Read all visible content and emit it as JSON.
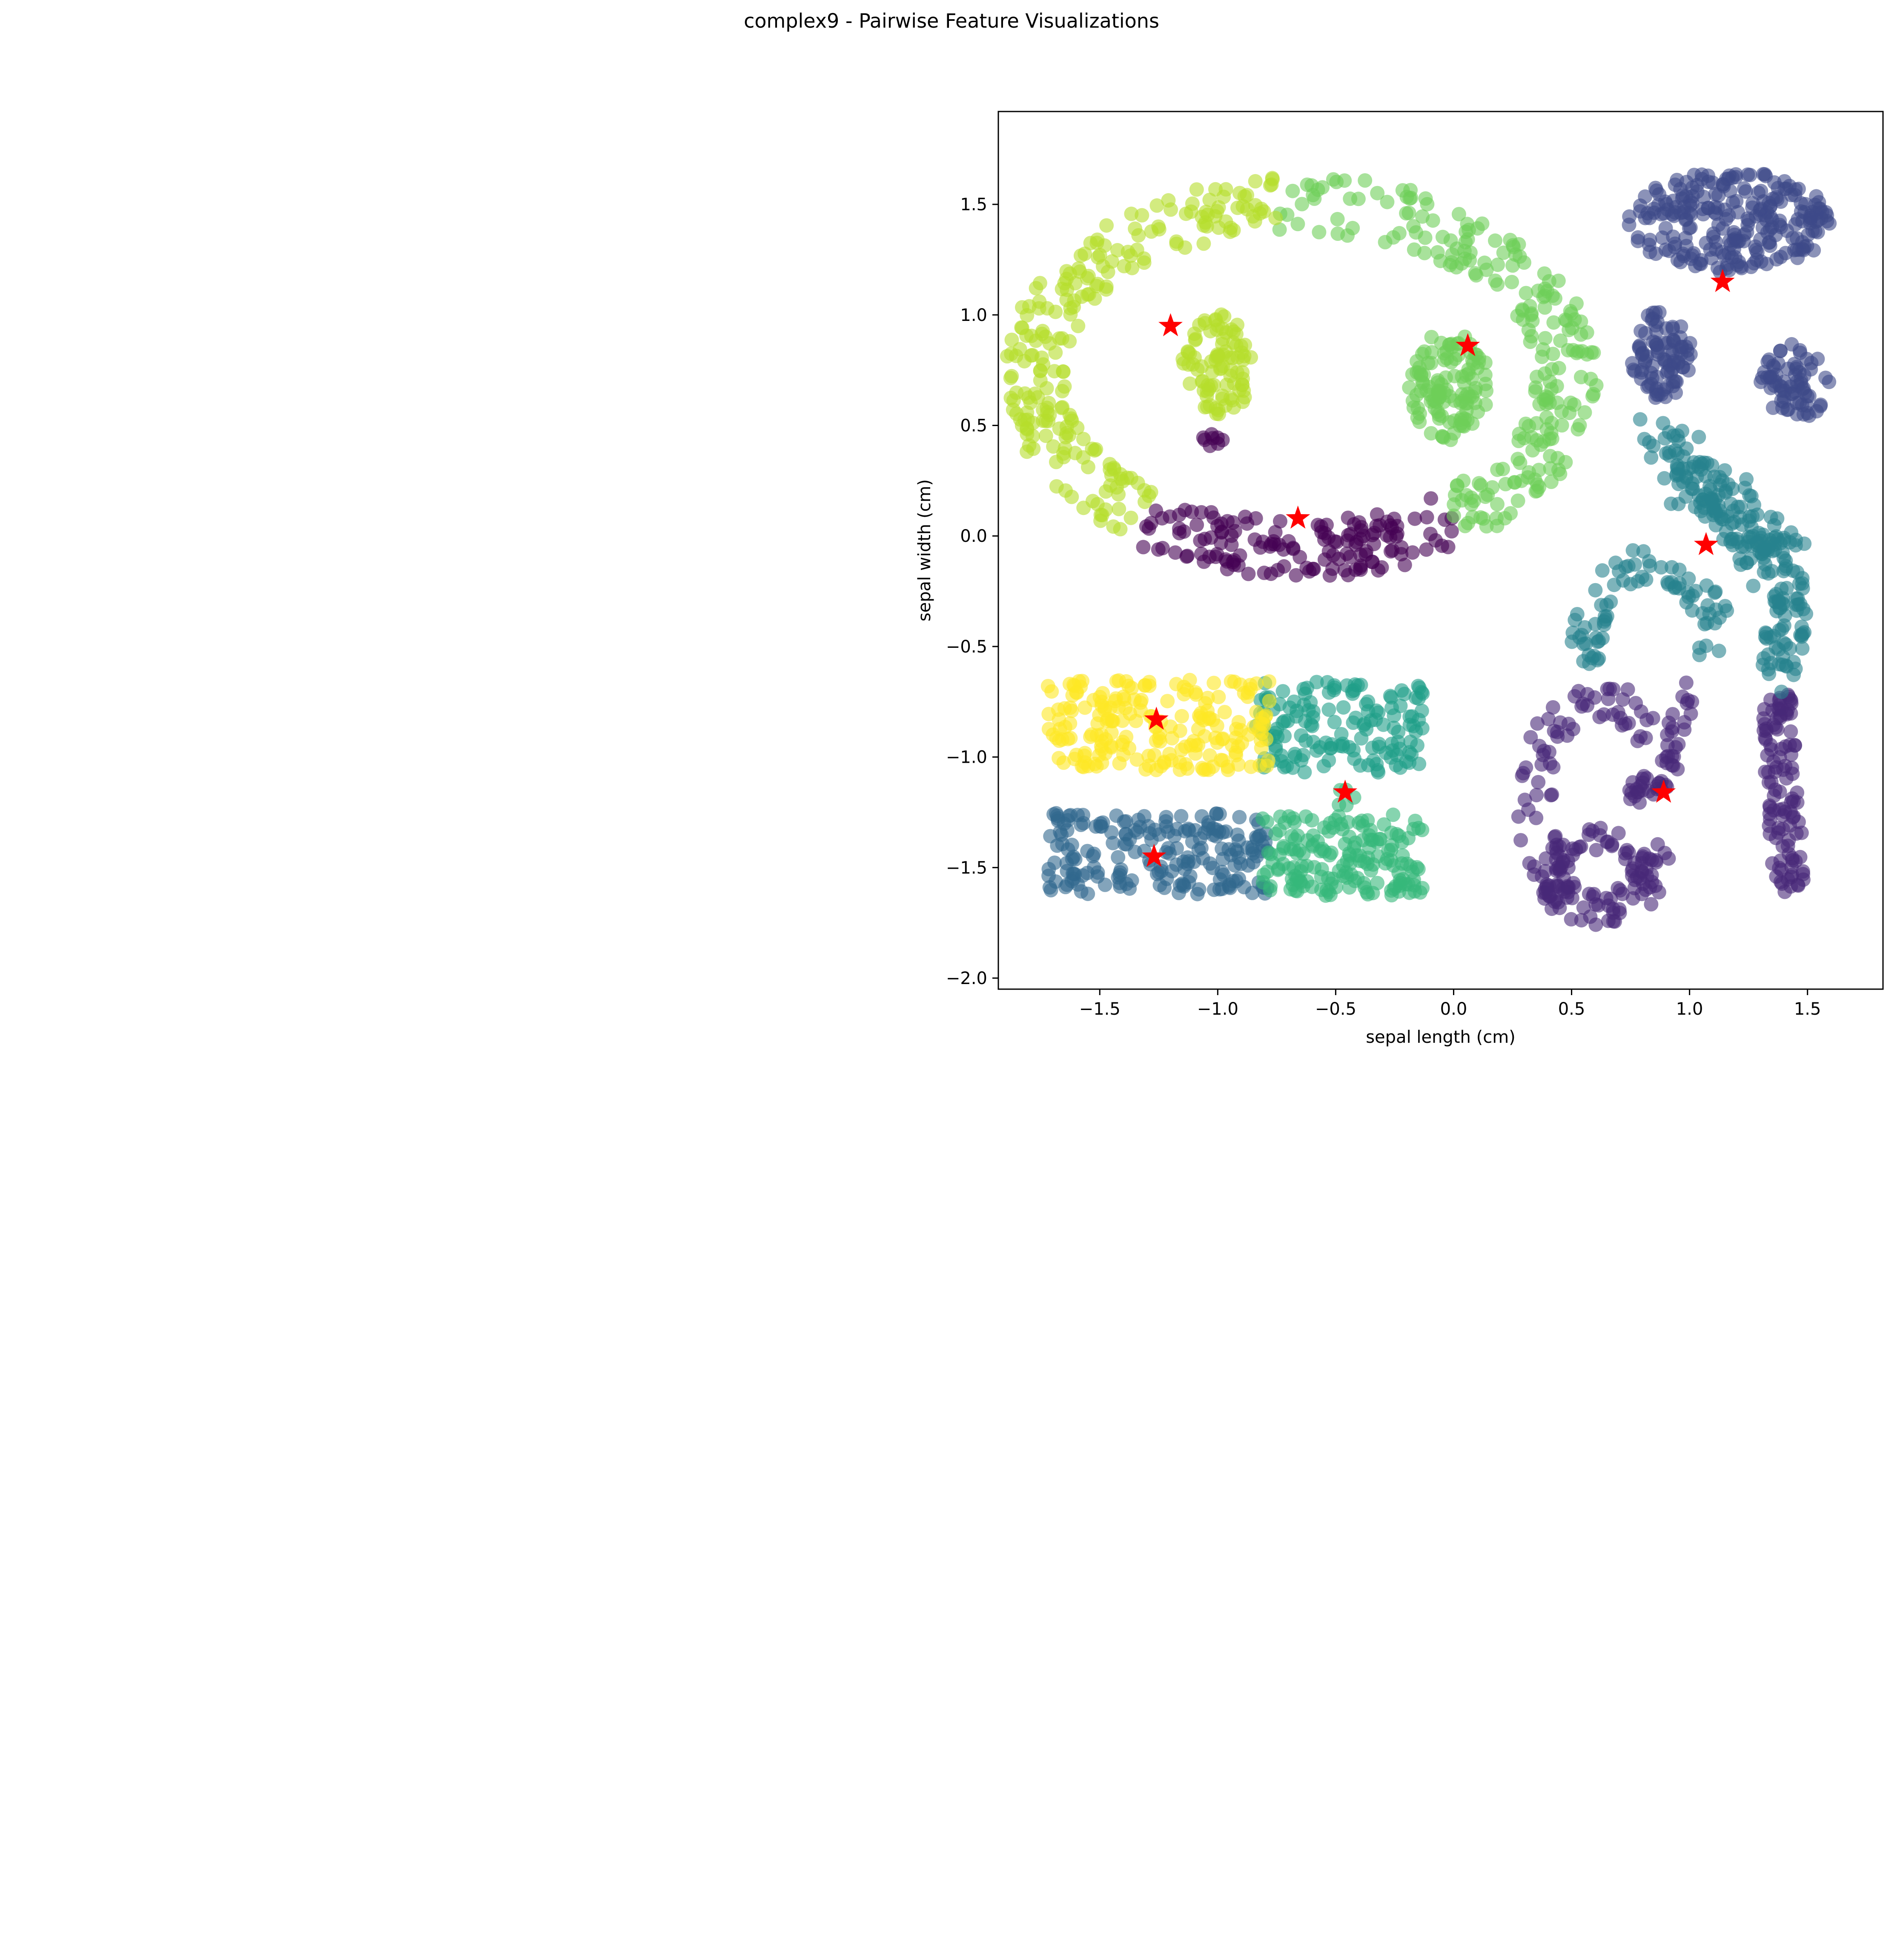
{
  "figure_title": "complex9 - Pairwise Feature Visualizations",
  "chart_data": {
    "type": "scatter",
    "title": "",
    "xlabel": "sepal length (cm)",
    "ylabel": "sepal width (cm)",
    "xlim": [
      -1.93,
      1.82
    ],
    "ylim": [
      -2.05,
      1.92
    ],
    "xticks": [
      -1.5,
      -1.0,
      -0.5,
      0.0,
      0.5,
      1.0,
      1.5
    ],
    "xtick_labels": [
      "−1.5",
      "−1.0",
      "−0.5",
      "0.0",
      "0.5",
      "1.0",
      "1.5"
    ],
    "yticks": [
      -2.0,
      -1.5,
      -1.0,
      -0.5,
      0.0,
      0.5,
      1.0,
      1.5
    ],
    "ytick_labels": [
      "−2.0",
      "−1.5",
      "−1.0",
      "−0.5",
      "0.0",
      "0.5",
      "1.0",
      "1.5"
    ],
    "grid": false,
    "legend": "none",
    "colormap": "viridis",
    "point_alpha": 0.6,
    "clusters": [
      {
        "cluster": 0,
        "color": "#440154",
        "shape": "arc",
        "center": [
          -0.65,
          0.72
        ],
        "rx": 1.13,
        "ry": 0.78,
        "angle_range": [
          235,
          305
        ],
        "thickness": 0.13,
        "count": 150
      },
      {
        "cluster": 0,
        "color": "#440154",
        "shape": "blob",
        "center": [
          -1.02,
          0.44
        ],
        "rx": 0.05,
        "ry": 0.04,
        "count": 8
      },
      {
        "cluster": 1,
        "color": "#482878",
        "shape": "arc",
        "center": [
          0.62,
          -1.22
        ],
        "rx": 0.28,
        "ry": 0.48,
        "angle_range": [
          40,
          340
        ],
        "thickness": 0.08,
        "count": 120
      },
      {
        "cluster": 1,
        "color": "#482878",
        "shape": "arc",
        "center": [
          0.62,
          -1.55
        ],
        "rx": 0.2,
        "ry": 0.17,
        "angle_range": [
          -40,
          220
        ],
        "thickness": 0.06,
        "count": 70
      },
      {
        "cluster": 1,
        "color": "#482878",
        "shape": "blob",
        "center": [
          0.82,
          -1.15
        ],
        "rx": 0.09,
        "ry": 0.07,
        "count": 25
      },
      {
        "cluster": 1,
        "color": "#482878",
        "shape": "band",
        "p1": [
          0.92,
          -1.05
        ],
        "p2": [
          1.0,
          -0.65
        ],
        "thickness": 0.05,
        "count": 25
      },
      {
        "cluster": 1,
        "color": "#482878",
        "shape": "band",
        "p1": [
          1.37,
          -0.72
        ],
        "p2": [
          1.42,
          -1.6
        ],
        "thickness": 0.07,
        "count": 110
      },
      {
        "cluster": 2,
        "color": "#3e4989",
        "shape": "blob",
        "center": [
          1.17,
          1.42
        ],
        "rx": 0.43,
        "ry": 0.23,
        "count": 250
      },
      {
        "cluster": 2,
        "color": "#3e4989",
        "shape": "blob",
        "center": [
          0.88,
          0.82
        ],
        "rx": 0.13,
        "ry": 0.2,
        "count": 90
      },
      {
        "cluster": 2,
        "color": "#3e4989",
        "shape": "blob",
        "center": [
          1.45,
          0.7
        ],
        "rx": 0.15,
        "ry": 0.17,
        "count": 70
      },
      {
        "cluster": 3,
        "color": "#31688e",
        "shape": "rect",
        "x": [
          -1.72,
          -0.79
        ],
        "y": [
          -1.62,
          -1.25
        ],
        "count": 200
      },
      {
        "cluster": 4,
        "color": "#26828e",
        "shape": "band",
        "p1": [
          0.88,
          0.42
        ],
        "p2": [
          1.4,
          -0.15
        ],
        "thickness": 0.12,
        "count": 180
      },
      {
        "cluster": 4,
        "color": "#26828e",
        "shape": "band",
        "p1": [
          1.43,
          -0.25
        ],
        "p2": [
          1.38,
          -0.65
        ],
        "thickness": 0.08,
        "count": 60
      },
      {
        "cluster": 4,
        "color": "#26828e",
        "shape": "arc",
        "center": [
          0.84,
          -0.45
        ],
        "rx": 0.26,
        "ry": 0.32,
        "angle_range": [
          -20,
          210
        ],
        "thickness": 0.08,
        "count": 80
      },
      {
        "cluster": 5,
        "color": "#1f9e89",
        "shape": "rect",
        "x": [
          -0.84,
          -0.13
        ],
        "y": [
          -1.07,
          -0.66
        ],
        "count": 150
      },
      {
        "cluster": 6,
        "color": "#35b779",
        "shape": "rect",
        "x": [
          -0.81,
          -0.13
        ],
        "y": [
          -1.63,
          -1.26
        ],
        "count": 170
      },
      {
        "cluster": 6,
        "color": "#35b779",
        "shape": "blob",
        "center": [
          -0.47,
          -1.18
        ],
        "rx": 0.05,
        "ry": 0.04,
        "count": 5
      },
      {
        "cluster": 7,
        "color": "#6ece58",
        "shape": "arc",
        "center": [
          -0.65,
          0.72
        ],
        "rx": 1.13,
        "ry": 0.78,
        "angle_range": [
          -55,
          95
        ],
        "thickness": 0.13,
        "count": 230
      },
      {
        "cluster": 7,
        "color": "#6ece58",
        "shape": "blob",
        "center": [
          -0.02,
          0.68
        ],
        "rx": 0.17,
        "ry": 0.25,
        "count": 120
      },
      {
        "cluster": 8,
        "color": "#b5de2b",
        "shape": "arc",
        "center": [
          -0.65,
          0.72
        ],
        "rx": 1.13,
        "ry": 0.78,
        "angle_range": [
          95,
          232
        ],
        "thickness": 0.13,
        "count": 230
      },
      {
        "cluster": 8,
        "color": "#b5de2b",
        "shape": "blob",
        "center": [
          -1.0,
          0.77
        ],
        "rx": 0.15,
        "ry": 0.24,
        "count": 90
      },
      {
        "cluster": 9,
        "color": "#fde725",
        "shape": "rect",
        "x": [
          -1.72,
          -0.78
        ],
        "y": [
          -1.06,
          -0.65
        ],
        "count": 210
      }
    ],
    "centroids": {
      "marker": "star",
      "color": "#ff0000",
      "points": [
        {
          "x": 1.14,
          "y": 1.15
        },
        {
          "x": -1.2,
          "y": 0.95
        },
        {
          "x": 0.06,
          "y": 0.86
        },
        {
          "x": -0.66,
          "y": 0.08
        },
        {
          "x": 1.07,
          "y": -0.04
        },
        {
          "x": -1.26,
          "y": -0.83
        },
        {
          "x": -0.46,
          "y": -1.16
        },
        {
          "x": 0.89,
          "y": -1.16
        },
        {
          "x": -1.27,
          "y": -1.45
        }
      ]
    }
  }
}
